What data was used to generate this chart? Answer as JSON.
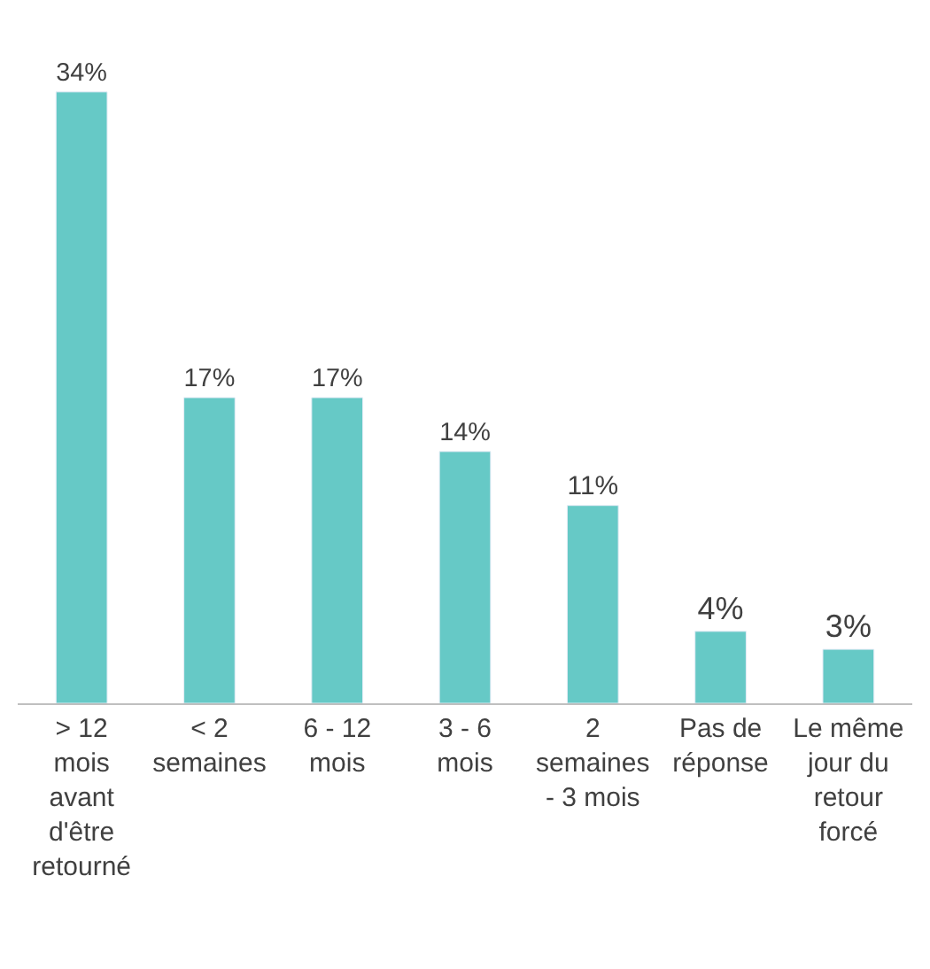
{
  "chart_data": {
    "type": "bar",
    "categories": [
      "> 12 mois avant d'être retourné",
      "< 2 semaines",
      "6 - 12 mois",
      "3 - 6 mois",
      "2 semaines - 3 mois",
      "Pas de réponse",
      "Le même jour du retour forcé"
    ],
    "values": [
      34,
      17,
      17,
      14,
      11,
      4,
      3
    ],
    "value_labels": [
      "34%",
      "17%",
      "17%",
      "14%",
      "11%",
      "4%",
      "3%"
    ],
    "color": "#66c9c6",
    "legend": false
  }
}
